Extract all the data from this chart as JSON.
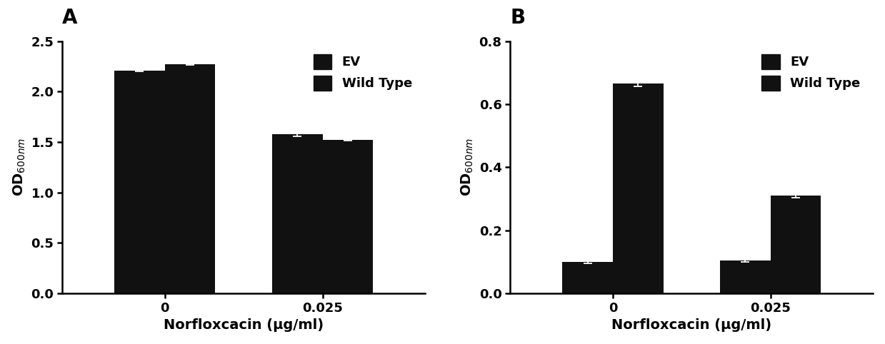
{
  "panel_A": {
    "title": "A",
    "categories": [
      "0",
      "0.025"
    ],
    "EV_values": [
      2.21,
      1.575
    ],
    "WT_values": [
      2.275,
      1.525
    ],
    "EV_errors": [
      0.01,
      0.018
    ],
    "WT_errors": [
      0.01,
      0.012
    ],
    "ylabel": "OD$_{600nm}$",
    "xlabel": "Norfloxcacin (μg/ml)",
    "ylim": [
      0,
      2.5
    ],
    "yticks": [
      0.0,
      0.5,
      1.0,
      1.5,
      2.0,
      2.5
    ]
  },
  "panel_B": {
    "title": "B",
    "categories": [
      "0",
      "0.025"
    ],
    "EV_values": [
      0.1,
      0.105
    ],
    "WT_values": [
      0.665,
      0.31
    ],
    "EV_errors": [
      0.005,
      0.006
    ],
    "WT_errors": [
      0.008,
      0.007
    ],
    "ylabel": "OD$_{600nm}$",
    "xlabel": "Norfloxcacin (μg/ml)",
    "ylim": [
      0,
      0.8
    ],
    "yticks": [
      0.0,
      0.2,
      0.4,
      0.6,
      0.8
    ]
  },
  "bar_color": "#111111",
  "bar_width": 0.32,
  "legend_labels": [
    "EV",
    "Wild Type"
  ],
  "title_fontsize": 20,
  "label_fontsize": 14,
  "tick_fontsize": 13,
  "legend_fontsize": 13
}
